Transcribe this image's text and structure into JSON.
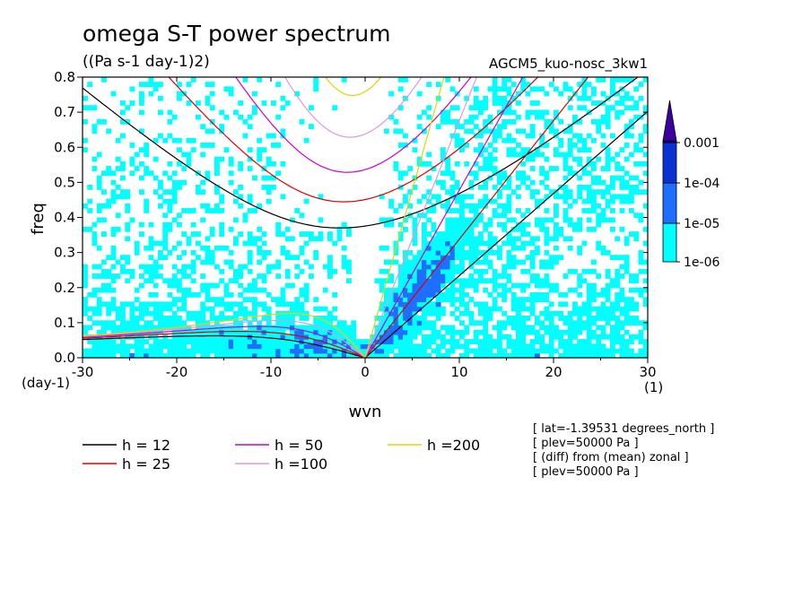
{
  "chart_data": {
    "type": "heatmap",
    "title": "omega S-T power spectrum",
    "units": "((Pa s-1 day-1)2)",
    "run_label": "AGCM5_kuo-nosc_3kw1",
    "xlabel": "wvn",
    "ylabel": "freq",
    "x_unit_label": "(1)",
    "y_unit_label": "(day-1)",
    "xlim": [
      -30,
      30
    ],
    "ylim": [
      0,
      0.8
    ],
    "x_ticks": [
      -30,
      -20,
      -10,
      0,
      10,
      20,
      30
    ],
    "x_tick_labels": [
      "-30",
      "-20",
      "-10",
      "0",
      "10",
      "20",
      "30"
    ],
    "y_ticks": [
      0,
      0.1,
      0.2,
      0.3,
      0.4,
      0.5,
      0.6,
      0.7,
      0.8
    ],
    "y_tick_labels": [
      "0.0",
      "0.1",
      "0.2",
      "0.3",
      "0.4",
      "0.5",
      "0.6",
      "0.7",
      "0.8"
    ],
    "colorbar": {
      "labels": [
        "0.001",
        "1e-04",
        "1e-05",
        "1e-06"
      ],
      "levels": [
        1e-06,
        1e-05,
        0.0001,
        0.001
      ],
      "colors": [
        "#00ffff",
        "#1e6eff",
        "#0a32d2",
        "#00009a",
        "#3c00a0"
      ]
    },
    "dispersion_curves": [
      {
        "label": "h = 12",
        "h": 12,
        "color": "#000000"
      },
      {
        "label": "h = 25",
        "h": 25,
        "color": "#e00000"
      },
      {
        "label": "h = 50",
        "h": 50,
        "color": "#cc00cc"
      },
      {
        "label": "h =100",
        "h": 100,
        "color": "#dd99dd"
      },
      {
        "label": "h =200",
        "h": 200,
        "color": "#e6d200"
      }
    ],
    "info_lines": [
      "[ lat=-1.39531 degrees_north ]",
      "[ plev=50000 Pa ]",
      "[ (diff) from (mean) zonal ]",
      "[ plev=50000 Pa ]"
    ]
  }
}
